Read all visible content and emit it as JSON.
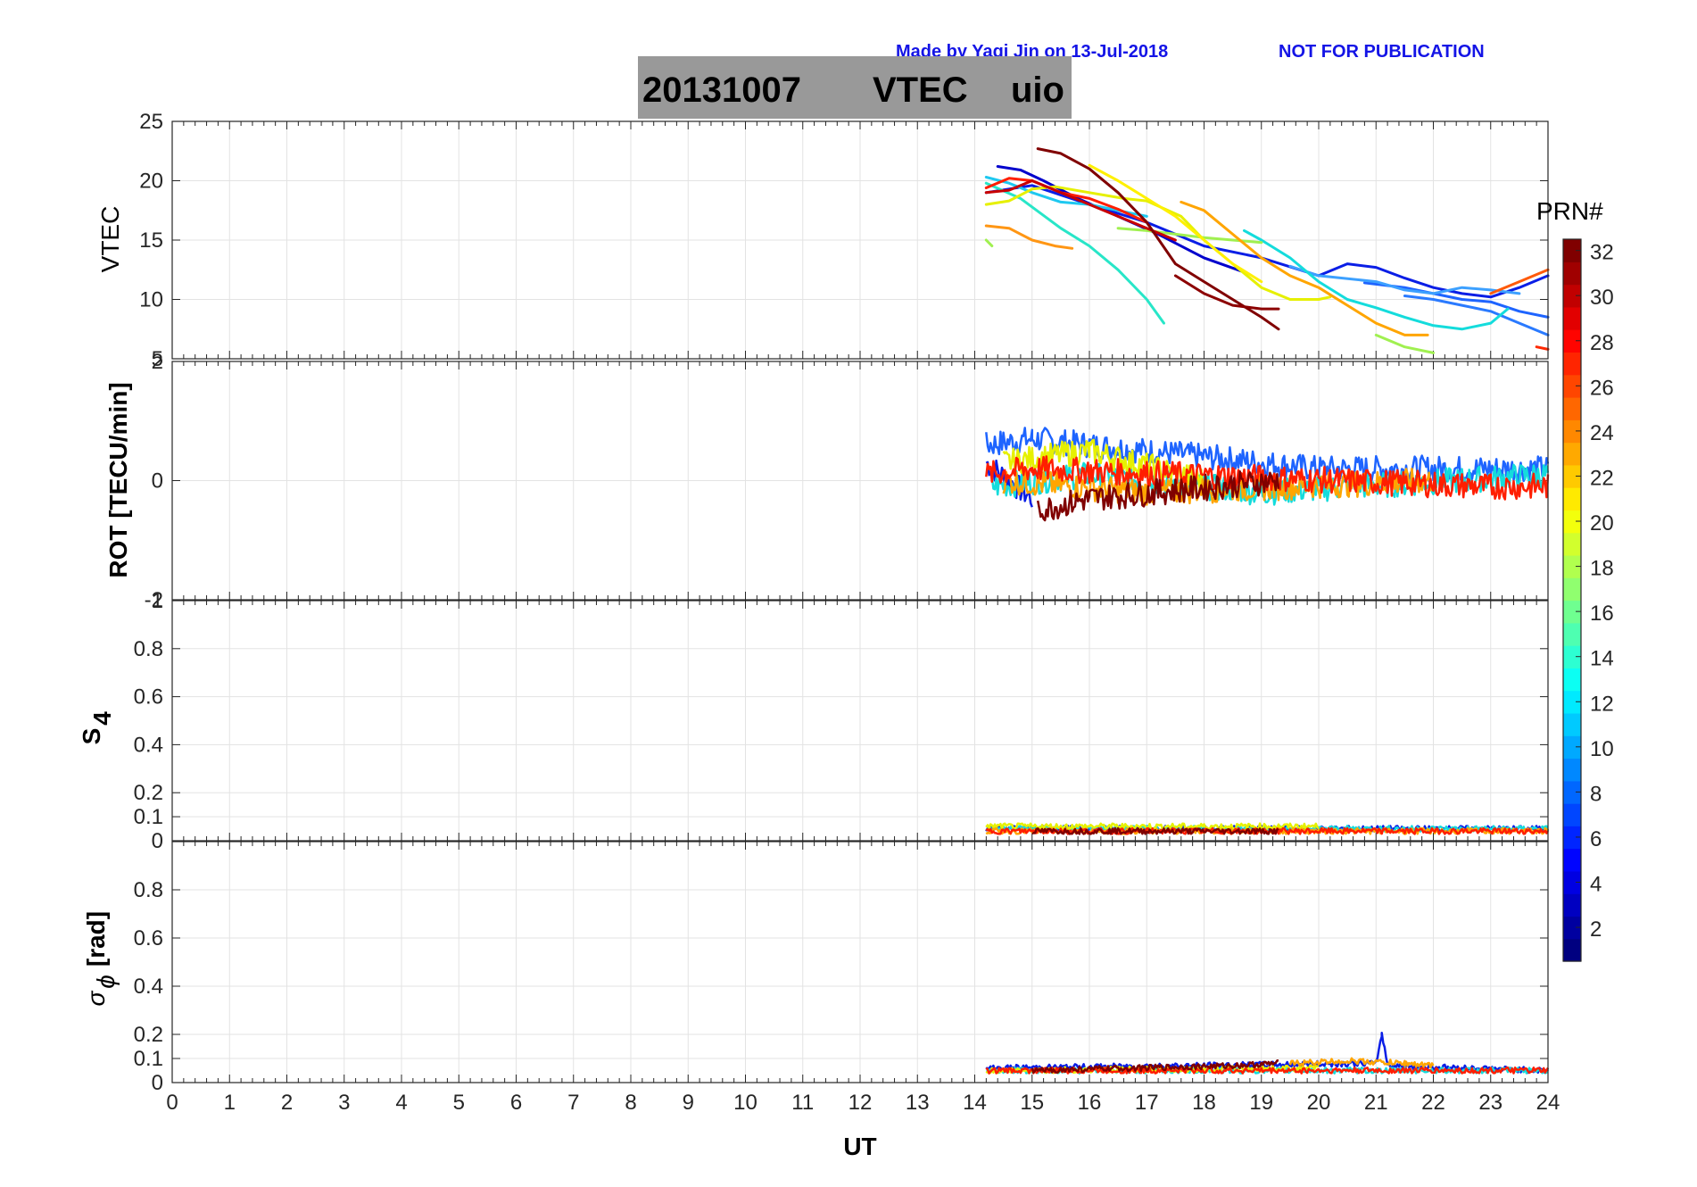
{
  "header": {
    "credit": "Made by Yaqi Jin on 13-Jul-2018",
    "notice": "NOT FOR PUBLICATION",
    "title_date": "20131007",
    "title_param": "VTEC",
    "title_station": "uio"
  },
  "colorbar": {
    "label": "PRN#",
    "ticks": [
      "2",
      "4",
      "6",
      "8",
      "10",
      "12",
      "14",
      "16",
      "18",
      "20",
      "22",
      "24",
      "26",
      "28",
      "30",
      "32"
    ],
    "colormap": "jet",
    "range": [
      1,
      32
    ]
  },
  "chart_data": [
    {
      "type": "line",
      "panel": "vtec",
      "ylabel": "VTEC",
      "xlim": [
        0,
        24
      ],
      "ylim": [
        5,
        25
      ],
      "yticks": [
        "25",
        "20",
        "15",
        "10",
        "5"
      ],
      "grid": true,
      "series": [
        {
          "prn": 3,
          "color": "#0000cc",
          "x": [
            14.4,
            14.8,
            15.2,
            15.8,
            16.5,
            17.2,
            18.0,
            18.7
          ],
          "y": [
            21.2,
            20.9,
            20.0,
            18.5,
            17.0,
            15.5,
            13.5,
            12.3
          ]
        },
        {
          "prn": 5,
          "color": "#0a1ee6",
          "x": [
            14.2,
            15.0,
            16.0,
            17.0,
            18.0,
            19.0,
            20.0,
            20.5,
            21.0,
            21.5,
            22.0,
            22.5,
            23.0,
            23.5,
            24.0
          ],
          "y": [
            19.0,
            19.6,
            18.0,
            16.5,
            14.5,
            13.5,
            12.0,
            13.0,
            12.7,
            11.8,
            11.0,
            10.5,
            10.2,
            11.0,
            12.0
          ]
        },
        {
          "prn": 9,
          "color": "#1e64ff",
          "x": [
            20.8,
            21.5,
            22.0,
            22.5,
            23.0,
            23.5,
            24.0
          ],
          "y": [
            11.4,
            11.0,
            10.5,
            10.0,
            9.8,
            9.0,
            8.5
          ]
        },
        {
          "prn": 10,
          "color": "#3ca0ff",
          "x": [
            19.5,
            20.0,
            21.0,
            21.5,
            22.0,
            22.5,
            23.0,
            23.5
          ],
          "y": [
            12.8,
            12.0,
            11.5,
            10.8,
            10.5,
            11.0,
            10.8,
            10.5
          ]
        },
        {
          "prn": 7,
          "color": "#2a7aff",
          "x": [
            21.5,
            22.0,
            22.5,
            23.0,
            23.5,
            24.0
          ],
          "y": [
            10.3,
            10.0,
            9.5,
            9.0,
            8.0,
            7.0
          ]
        },
        {
          "prn": 12,
          "color": "#14dcdc",
          "x": [
            18.7,
            19.0,
            19.5,
            20.0,
            20.5,
            21.0,
            21.5,
            22.0,
            22.5,
            23.0,
            23.3
          ],
          "y": [
            15.8,
            15.0,
            13.5,
            11.5,
            10.0,
            9.3,
            8.5,
            7.8,
            7.5,
            8.0,
            9.2
          ]
        },
        {
          "prn": 13,
          "color": "#28e6c8",
          "x": [
            14.2,
            14.8,
            15.5,
            16.0,
            16.5,
            17.0,
            17.3
          ],
          "y": [
            19.8,
            18.5,
            16.0,
            14.5,
            12.5,
            10.0,
            8.0
          ]
        },
        {
          "prn": 11,
          "color": "#1ec8f0",
          "x": [
            14.2,
            14.6,
            15.0,
            15.5,
            16.0,
            16.5,
            17.0
          ],
          "y": [
            20.3,
            19.8,
            19.0,
            18.2,
            18.0,
            17.5,
            17.0
          ]
        },
        {
          "prn": 17,
          "color": "#a0f050",
          "x": [
            14.2,
            14.3
          ],
          "y": [
            15.0,
            14.5
          ]
        },
        {
          "prn": 17,
          "color": "#a0f050",
          "x": [
            16.5,
            17.0,
            17.5,
            18.0,
            18.5,
            19.0
          ],
          "y": [
            16.0,
            15.8,
            15.5,
            15.2,
            15.0,
            14.8
          ]
        },
        {
          "prn": 17,
          "color": "#a0f050",
          "x": [
            21.0,
            21.5,
            22.0
          ],
          "y": [
            7.0,
            6.0,
            5.5
          ]
        },
        {
          "prn": 19,
          "color": "#e6f000",
          "x": [
            14.2,
            14.6,
            15.0,
            15.4,
            16.0,
            16.6,
            17.0,
            17.6,
            18.0,
            18.5,
            19.0,
            19.5,
            20.0,
            20.2
          ],
          "y": [
            18.0,
            18.3,
            19.3,
            19.5,
            19.0,
            18.5,
            18.3,
            17.0,
            15.0,
            13.0,
            11.0,
            10.0,
            10.0,
            10.2
          ]
        },
        {
          "prn": 20,
          "color": "#fff000",
          "x": [
            16.0,
            16.5,
            17.0,
            17.5,
            18.0,
            18.5,
            19.0
          ],
          "y": [
            21.3,
            20.0,
            18.5,
            17.0,
            15.0,
            13.0,
            11.5
          ]
        },
        {
          "prn": 22,
          "color": "#ffa500",
          "x": [
            17.6,
            18.0,
            18.5,
            19.0,
            19.5,
            20.0,
            20.5,
            21.0,
            21.5,
            21.9
          ],
          "y": [
            18.2,
            17.5,
            15.5,
            13.5,
            12.0,
            11.0,
            9.5,
            8.0,
            7.0,
            7.0
          ]
        },
        {
          "prn": 23,
          "color": "#ff9614",
          "x": [
            14.2,
            14.6,
            15.0,
            15.4,
            15.7
          ],
          "y": [
            16.2,
            16.0,
            15.0,
            14.5,
            14.3
          ]
        },
        {
          "prn": 25,
          "color": "#ff5a0a",
          "x": [
            23.0,
            23.5,
            24.0
          ],
          "y": [
            10.5,
            11.5,
            12.5
          ]
        },
        {
          "prn": 27,
          "color": "#ff1e00",
          "x": [
            14.2,
            14.6,
            15.0,
            15.5,
            16.0,
            16.5,
            17.0
          ],
          "y": [
            19.4,
            20.2,
            20.0,
            19.0,
            18.5,
            17.6,
            16.5
          ]
        },
        {
          "prn": 26,
          "color": "#ff2800",
          "x": [
            23.8,
            24.0
          ],
          "y": [
            6.0,
            5.8
          ]
        },
        {
          "prn": 29,
          "color": "#c80000",
          "x": [
            14.2,
            14.6,
            15.0,
            15.5,
            16.0,
            16.5,
            17.0,
            17.5
          ],
          "y": [
            19.0,
            19.2,
            20.0,
            19.0,
            18.0,
            17.0,
            16.0,
            15.0
          ]
        },
        {
          "prn": 31,
          "color": "#800000",
          "x": [
            15.1,
            15.5,
            16.0,
            16.5,
            17.0,
            17.5,
            18.0,
            18.5,
            19.0,
            19.3
          ],
          "y": [
            22.7,
            22.3,
            21.0,
            19.0,
            16.5,
            13.0,
            11.5,
            10.0,
            8.5,
            7.5
          ]
        },
        {
          "prn": 32,
          "color": "#8c0000",
          "x": [
            17.5,
            18.0,
            18.5,
            19.0,
            19.3
          ],
          "y": [
            12.0,
            10.5,
            9.5,
            9.2,
            9.2
          ]
        }
      ]
    },
    {
      "type": "line",
      "panel": "rot",
      "ylabel": "ROT [TECU/min]",
      "xlim": [
        0,
        24
      ],
      "ylim": [
        -2,
        2
      ],
      "yticks": [
        "2",
        "0",
        "-2"
      ],
      "grid": true,
      "series": [
        {
          "prn": 5,
          "color": "#0a1ee6",
          "x": [
            14.2,
            15.0
          ],
          "y": [
            0.3,
            -0.3
          ]
        },
        {
          "prn": 9,
          "color": "#1e64ff",
          "x": [
            14.2,
            15.0,
            20.0,
            24.0
          ],
          "y": [
            0.6,
            0.7,
            0.2,
            0.2
          ]
        },
        {
          "prn": 12,
          "color": "#14dcdc",
          "x": [
            14.3,
            16.0,
            19.0,
            24.0
          ],
          "y": [
            -0.1,
            0.1,
            -0.2,
            0.1
          ]
        },
        {
          "prn": 19,
          "color": "#e6f000",
          "x": [
            14.5,
            16.0,
            18.0
          ],
          "y": [
            0.3,
            0.5,
            0.0
          ]
        },
        {
          "prn": 22,
          "color": "#ffa500",
          "x": [
            14.5,
            17.0,
            22.0
          ],
          "y": [
            0.0,
            -0.2,
            0.0
          ]
        },
        {
          "prn": 27,
          "color": "#ff1e00",
          "x": [
            14.2,
            15.0,
            23.0,
            24.0
          ],
          "y": [
            0.1,
            0.2,
            -0.1,
            -0.1
          ]
        },
        {
          "prn": 31,
          "color": "#800000",
          "x": [
            15.1,
            16.0,
            19.3
          ],
          "y": [
            -0.5,
            -0.3,
            0.0
          ]
        }
      ]
    },
    {
      "type": "line",
      "panel": "s4",
      "ylabel": "S4",
      "xlim": [
        0,
        24
      ],
      "ylim": [
        0,
        1
      ],
      "yticks": [
        "1",
        "0.8",
        "0.6",
        "0.4",
        "0.2",
        "0.1",
        "0"
      ],
      "grid": true,
      "series": [
        {
          "prn": 5,
          "color": "#0a1ee6",
          "x": [
            14.2,
            24.0
          ],
          "y": [
            0.05,
            0.05
          ]
        },
        {
          "prn": 12,
          "color": "#14dcdc",
          "x": [
            14.2,
            24.0
          ],
          "y": [
            0.05,
            0.05
          ]
        },
        {
          "prn": 19,
          "color": "#e6f000",
          "x": [
            14.2,
            20.0
          ],
          "y": [
            0.06,
            0.06
          ]
        },
        {
          "prn": 22,
          "color": "#ffa500",
          "x": [
            14.2,
            24.0
          ],
          "y": [
            0.04,
            0.04
          ]
        },
        {
          "prn": 27,
          "color": "#ff1e00",
          "x": [
            14.2,
            24.0
          ],
          "y": [
            0.04,
            0.04
          ]
        },
        {
          "prn": 31,
          "color": "#800000",
          "x": [
            15.0,
            19.3
          ],
          "y": [
            0.04,
            0.04
          ]
        }
      ]
    },
    {
      "type": "line",
      "panel": "sigma_phi",
      "ylabel": "σφ [rad]",
      "xlabel": "UT",
      "xlim": [
        0,
        24
      ],
      "ylim": [
        0,
        1
      ],
      "yticks": [
        "0.8",
        "0.6",
        "0.4",
        "0.2",
        "0.1",
        "0"
      ],
      "xticks": [
        "0",
        "1",
        "2",
        "3",
        "4",
        "5",
        "6",
        "7",
        "8",
        "9",
        "10",
        "11",
        "12",
        "13",
        "14",
        "15",
        "16",
        "17",
        "18",
        "19",
        "20",
        "21",
        "22",
        "23",
        "24"
      ],
      "grid": true,
      "series": [
        {
          "prn": 5,
          "color": "#0a1ee6",
          "x": [
            14.2,
            21.0,
            21.1,
            21.2,
            21.3,
            24.0
          ],
          "y": [
            0.06,
            0.08,
            0.2,
            0.08,
            0.07,
            0.05
          ]
        },
        {
          "prn": 12,
          "color": "#14dcdc",
          "x": [
            14.2,
            24.0
          ],
          "y": [
            0.05,
            0.05
          ]
        },
        {
          "prn": 19,
          "color": "#e6f000",
          "x": [
            14.2,
            20.0
          ],
          "y": [
            0.05,
            0.06
          ]
        },
        {
          "prn": 22,
          "color": "#ffa500",
          "x": [
            19.5,
            20.5,
            21.5,
            22.0
          ],
          "y": [
            0.08,
            0.09,
            0.08,
            0.07
          ]
        },
        {
          "prn": 27,
          "color": "#ff1e00",
          "x": [
            14.2,
            24.0
          ],
          "y": [
            0.05,
            0.05
          ]
        },
        {
          "prn": 31,
          "color": "#800000",
          "x": [
            15.0,
            18.5,
            19.3
          ],
          "y": [
            0.05,
            0.07,
            0.08
          ]
        }
      ]
    }
  ]
}
